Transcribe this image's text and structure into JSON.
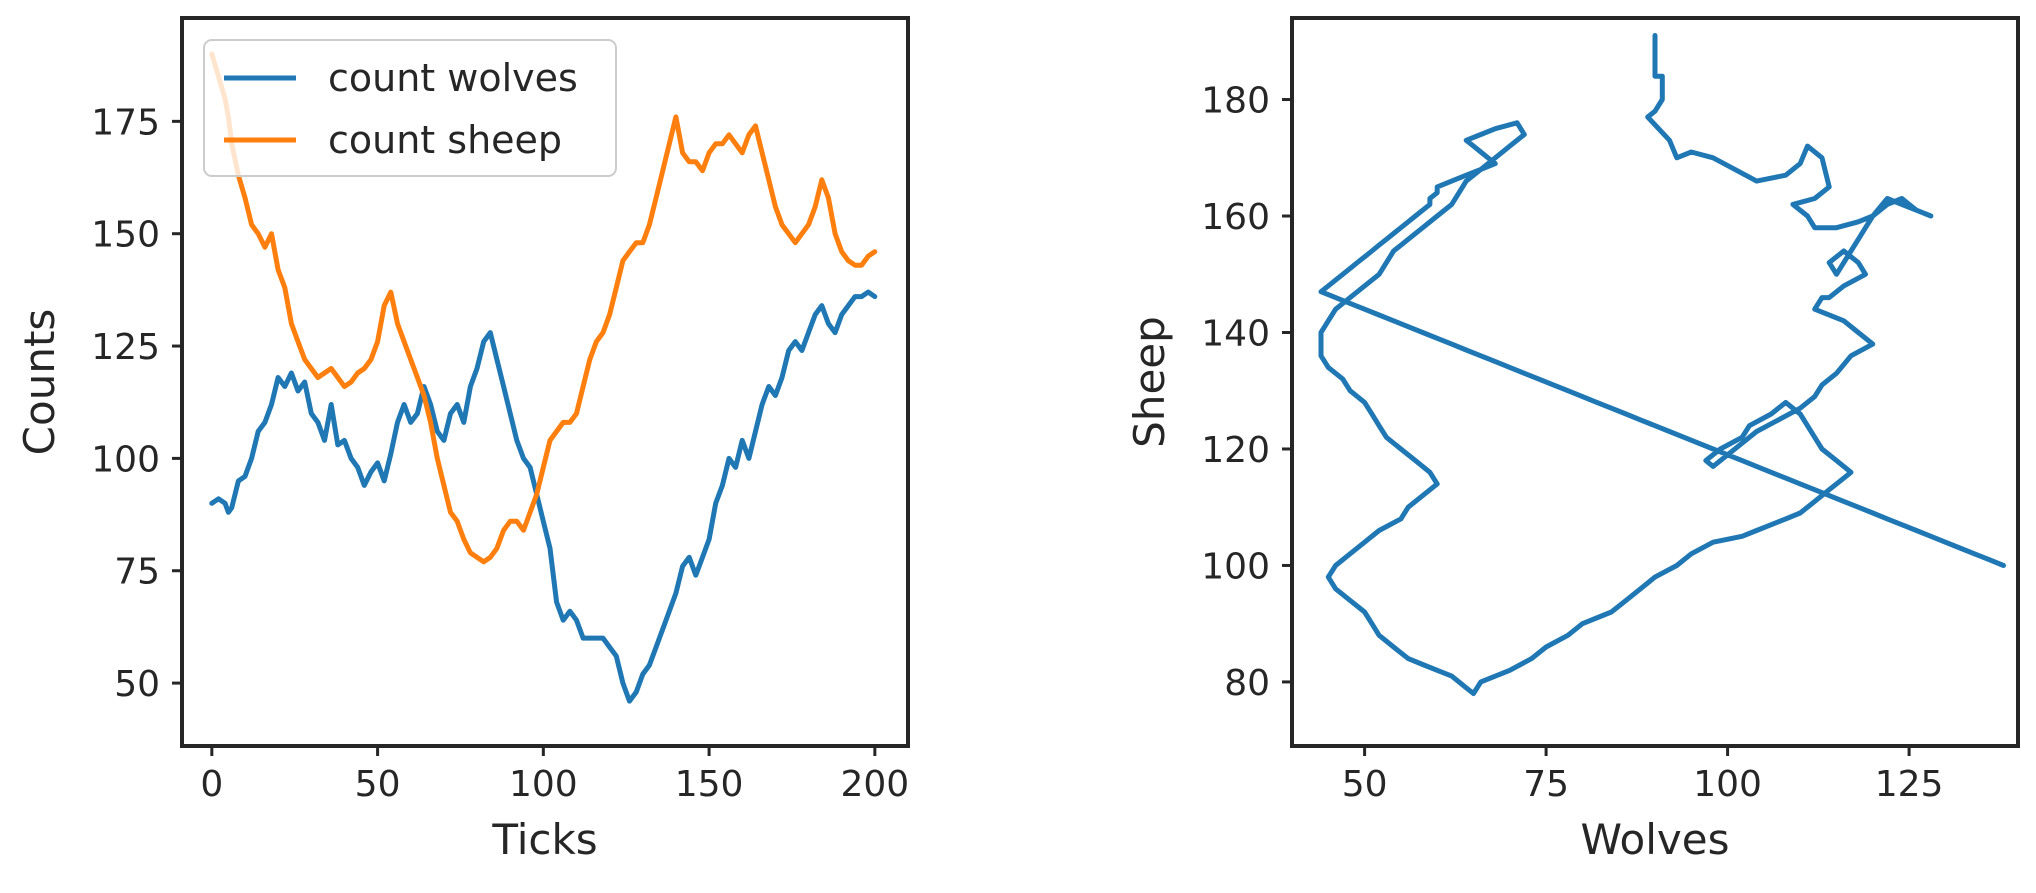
{
  "chart_data": [
    {
      "type": "line",
      "xlabel": "Ticks",
      "ylabel": "Counts",
      "xlim": [
        -9,
        210
      ],
      "ylim": [
        36,
        198
      ],
      "xticks": [
        "0",
        "50",
        "100",
        "150",
        "200"
      ],
      "yticks": [
        "50",
        "75",
        "100",
        "125",
        "150",
        "175"
      ],
      "grid": false,
      "legend": "top-left",
      "series": [
        {
          "name": "count wolves",
          "color": "#1f77b4",
          "x": [
            0,
            2,
            4,
            5,
            6,
            8,
            10,
            12,
            14,
            16,
            18,
            20,
            22,
            24,
            26,
            28,
            30,
            32,
            34,
            36,
            38,
            40,
            42,
            44,
            46,
            48,
            50,
            52,
            54,
            56,
            58,
            60,
            62,
            64,
            66,
            68,
            70,
            72,
            74,
            76,
            78,
            80,
            82,
            84,
            86,
            88,
            90,
            92,
            94,
            96,
            98,
            100,
            102,
            104,
            106,
            108,
            110,
            112,
            114,
            116,
            118,
            120,
            122,
            124,
            126,
            128,
            130,
            132,
            134,
            136,
            138,
            140,
            142,
            144,
            146,
            148,
            150,
            152,
            154,
            156,
            158,
            160,
            162,
            164,
            166,
            168,
            170,
            172,
            174,
            176,
            178,
            180,
            182,
            184,
            186,
            188,
            190,
            192,
            194,
            196,
            198,
            200
          ],
          "y": [
            90,
            91,
            90,
            88,
            89,
            95,
            96,
            100,
            106,
            108,
            112,
            118,
            116,
            119,
            115,
            117,
            110,
            108,
            104,
            112,
            103,
            104,
            100,
            98,
            94,
            97,
            99,
            95,
            101,
            108,
            112,
            108,
            110,
            116,
            112,
            106,
            104,
            110,
            112,
            108,
            116,
            120,
            126,
            128,
            122,
            116,
            110,
            104,
            100,
            98,
            92,
            86,
            80,
            68,
            64,
            66,
            64,
            60,
            60,
            60,
            60,
            58,
            56,
            50,
            46,
            48,
            52,
            54,
            58,
            62,
            66,
            70,
            76,
            78,
            74,
            78,
            82,
            90,
            94,
            100,
            98,
            104,
            100,
            106,
            112,
            116,
            114,
            118,
            124,
            126,
            124,
            128,
            132,
            134,
            130,
            128,
            132,
            134,
            136,
            136,
            137,
            136
          ]
        },
        {
          "name": "count sheep",
          "color": "#ff7f0e",
          "x": [
            0,
            2,
            4,
            5,
            6,
            8,
            10,
            12,
            14,
            16,
            18,
            20,
            22,
            24,
            26,
            28,
            30,
            32,
            34,
            36,
            38,
            40,
            42,
            44,
            46,
            48,
            50,
            52,
            54,
            56,
            58,
            60,
            62,
            64,
            66,
            68,
            70,
            72,
            74,
            76,
            78,
            80,
            82,
            84,
            86,
            88,
            90,
            92,
            94,
            96,
            98,
            100,
            102,
            104,
            106,
            108,
            110,
            112,
            114,
            116,
            118,
            120,
            122,
            124,
            126,
            128,
            130,
            132,
            134,
            136,
            138,
            140,
            142,
            144,
            146,
            148,
            150,
            152,
            154,
            156,
            158,
            160,
            162,
            164,
            166,
            168,
            170,
            172,
            174,
            176,
            178,
            180,
            182,
            184,
            186,
            188,
            190,
            192,
            194,
            196,
            198,
            200
          ],
          "y": [
            190,
            185,
            180,
            176,
            170,
            163,
            158,
            152,
            150,
            147,
            150,
            142,
            138,
            130,
            126,
            122,
            120,
            118,
            119,
            120,
            118,
            116,
            117,
            119,
            120,
            122,
            126,
            134,
            137,
            130,
            126,
            122,
            118,
            114,
            108,
            100,
            94,
            88,
            86,
            82,
            79,
            78,
            77,
            78,
            80,
            84,
            86,
            86,
            84,
            88,
            92,
            98,
            104,
            106,
            108,
            108,
            110,
            116,
            122,
            126,
            128,
            132,
            138,
            144,
            146,
            148,
            148,
            152,
            158,
            164,
            170,
            176,
            168,
            166,
            166,
            164,
            168,
            170,
            170,
            172,
            170,
            168,
            172,
            174,
            168,
            162,
            156,
            152,
            150,
            148,
            150,
            152,
            156,
            162,
            158,
            150,
            146,
            144,
            143,
            143,
            145,
            146
          ]
        }
      ]
    },
    {
      "type": "line",
      "xlabel": "Wolves",
      "ylabel": "Sheep",
      "xlim": [
        40,
        140
      ],
      "ylim": [
        69,
        194
      ],
      "xticks": [
        "50",
        "75",
        "100",
        "125"
      ],
      "yticks": [
        "80",
        "100",
        "120",
        "140",
        "160",
        "180"
      ],
      "grid": false,
      "series": [
        {
          "color": "#1f77b4",
          "x": [
            90,
            90,
            91,
            91,
            90,
            89,
            92,
            93,
            95,
            98,
            101,
            104,
            108,
            110,
            111,
            113,
            114,
            112,
            109,
            111,
            112,
            115,
            118,
            120,
            122,
            124,
            126,
            128,
            126,
            124,
            122,
            120,
            119,
            118,
            117,
            116,
            115,
            114,
            116,
            118,
            119,
            116,
            114,
            113,
            112,
            116,
            118,
            120,
            117,
            115,
            113,
            112,
            110,
            107,
            104,
            102,
            100,
            98,
            97,
            99,
            102,
            103,
            106,
            108,
            110,
            111,
            112,
            113,
            115,
            117,
            115,
            114,
            113,
            112,
            111,
            110,
            108,
            106,
            104,
            102,
            98,
            95,
            93,
            90,
            88,
            86,
            84,
            80,
            78,
            75,
            73,
            70,
            66,
            65,
            64,
            63,
            62,
            60,
            58,
            56,
            55,
            54,
            52,
            51,
            50,
            48,
            46,
            45,
            46,
            48,
            50,
            52,
            55,
            56,
            58,
            60,
            59,
            57,
            55,
            53,
            52,
            51,
            50,
            48,
            47,
            45,
            44,
            44,
            44,
            45,
            46,
            48,
            50,
            52,
            53,
            54,
            56,
            58,
            60,
            62,
            63,
            64,
            66,
            68,
            70,
            72,
            71,
            68,
            66,
            64,
            65,
            66,
            67,
            68,
            66,
            64,
            62,
            60,
            60,
            59,
            59,
            58,
            57,
            56,
            55,
            54,
            53,
            52,
            51,
            50,
            49,
            48,
            47,
            46,
            45,
            44,
            46,
            48,
            50,
            52,
            54,
            56,
            58,
            60,
            62,
            64,
            66,
            68,
            70,
            72,
            74,
            76,
            78,
            80,
            82,
            84,
            86,
            88,
            90,
            92,
            94,
            96,
            98,
            100,
            102,
            104,
            106,
            108,
            110,
            112,
            114,
            116,
            118,
            120,
            122,
            124,
            126,
            128,
            130,
            132,
            134,
            136,
            138
          ],
          "y": [
            191,
            184,
            184,
            180,
            178,
            177,
            173,
            170,
            171,
            170,
            168,
            166,
            167,
            169,
            172,
            170,
            165,
            163,
            162,
            160,
            158,
            158,
            159,
            160,
            162,
            163,
            161,
            160,
            161,
            162,
            163,
            160,
            158,
            156,
            154,
            152,
            150,
            152,
            154,
            152,
            150,
            148,
            146,
            146,
            144,
            142,
            140,
            138,
            136,
            133,
            131,
            129,
            127,
            125,
            123,
            121,
            119,
            117,
            118,
            120,
            122,
            124,
            126,
            128,
            126,
            124,
            122,
            120,
            118,
            116,
            114,
            113,
            112,
            111,
            110,
            109,
            108,
            107,
            106,
            105,
            104,
            102,
            100,
            98,
            96,
            94,
            92,
            90,
            88,
            86,
            84,
            82,
            80,
            78,
            79,
            80,
            81,
            82,
            83,
            84,
            85,
            86,
            88,
            90,
            92,
            94,
            96,
            98,
            100,
            102,
            104,
            106,
            108,
            110,
            112,
            114,
            116,
            118,
            120,
            122,
            124,
            126,
            128,
            130,
            132,
            134,
            136,
            138,
            140,
            142,
            144,
            146,
            148,
            150,
            152,
            154,
            156,
            158,
            160,
            162,
            164,
            166,
            168,
            170,
            172,
            174,
            176,
            175,
            174,
            173,
            172,
            171,
            170,
            169,
            168,
            167,
            166,
            165,
            164,
            163,
            162,
            161,
            160,
            159,
            158,
            157,
            156,
            155,
            154,
            153,
            152,
            151,
            150,
            149,
            148,
            147,
            146,
            145,
            144,
            143,
            142,
            141,
            140,
            139,
            138,
            137,
            136,
            135,
            134,
            133,
            132,
            131,
            130,
            129,
            128,
            127,
            126,
            125,
            124,
            123,
            122,
            121,
            120,
            119,
            118,
            117,
            116,
            115,
            114,
            113,
            112,
            111,
            110,
            109,
            108,
            107,
            106,
            105,
            104,
            103,
            102,
            101,
            100
          ]
        }
      ]
    }
  ]
}
